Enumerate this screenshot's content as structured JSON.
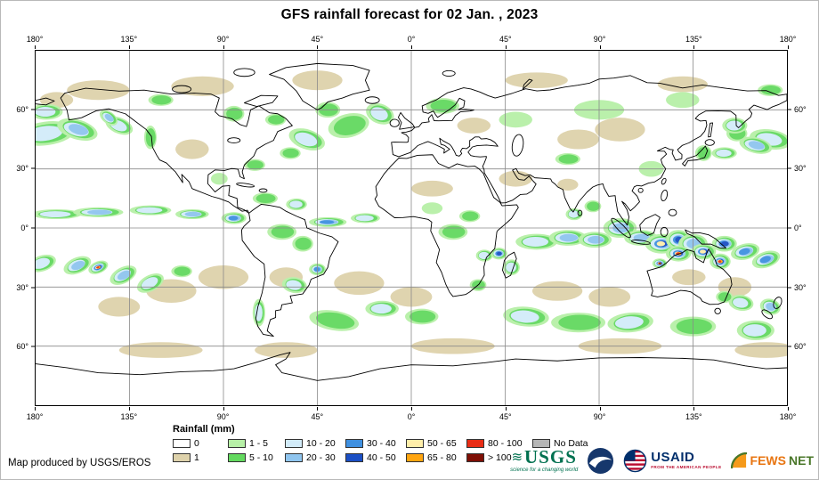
{
  "title": "GFS rainfall forecast for 02 Jan. , 2023",
  "attribution": "Map produced by USGS/EROS",
  "map": {
    "lon_labels": [
      "180°",
      "135°",
      "90°",
      "45°",
      "0°",
      "45°",
      "90°",
      "135°",
      "180°"
    ],
    "lat_labels": [
      "60°",
      "30°",
      "0°",
      "30°",
      "60°"
    ],
    "tan_patches": [
      [
        30,
        20,
        15,
        5,
        0
      ],
      [
        80,
        18,
        15,
        5,
        0
      ],
      [
        135,
        15,
        12,
        5,
        0
      ],
      [
        240,
        15,
        15,
        4,
        0
      ],
      [
        310,
        17,
        12,
        4,
        0
      ],
      [
        10,
        25,
        8,
        4,
        0
      ],
      [
        280,
        40,
        12,
        6,
        0
      ],
      [
        260,
        45,
        10,
        5,
        0
      ],
      [
        75,
        50,
        8,
        5,
        0
      ],
      [
        120,
        115,
        8,
        5,
        0
      ],
      [
        155,
        118,
        12,
        6,
        0
      ],
      [
        180,
        125,
        10,
        5,
        0
      ],
      [
        90,
        115,
        12,
        6,
        0
      ],
      [
        65,
        122,
        12,
        6,
        0
      ],
      [
        250,
        122,
        12,
        5,
        0
      ],
      [
        275,
        125,
        10,
        5,
        0
      ],
      [
        335,
        120,
        8,
        5,
        0
      ],
      [
        40,
        130,
        10,
        5,
        0
      ],
      [
        60,
        152,
        20,
        4,
        0
      ],
      [
        120,
        152,
        15,
        4,
        0
      ],
      [
        200,
        150,
        20,
        4,
        0
      ],
      [
        280,
        150,
        20,
        4,
        0
      ],
      [
        350,
        152,
        15,
        4,
        0
      ],
      [
        190,
        70,
        10,
        4,
        0
      ],
      [
        230,
        65,
        8,
        4,
        0
      ],
      [
        313,
        115,
        8,
        4,
        0
      ],
      [
        255,
        68,
        5,
        3,
        0
      ],
      [
        210,
        38,
        8,
        4,
        0
      ]
    ],
    "rain_systems": [
      [
        5,
        42,
        14,
        6,
        3,
        -8
      ],
      [
        352,
        45,
        10,
        5,
        3,
        10
      ],
      [
        345,
        48,
        8,
        4,
        4,
        15
      ],
      [
        20,
        40,
        10,
        5,
        4,
        18
      ],
      [
        40,
        38,
        7,
        4,
        3,
        25
      ],
      [
        35,
        34,
        5,
        3,
        4,
        40
      ],
      [
        5,
        31,
        8,
        4,
        3,
        0
      ],
      [
        330,
        52,
        6,
        3,
        3,
        0
      ],
      [
        336,
        42,
        5,
        4,
        2,
        0
      ],
      [
        55,
        44,
        3,
        6,
        2,
        0
      ],
      [
        130,
        45,
        9,
        5,
        3,
        20
      ],
      [
        150,
        38,
        10,
        6,
        2,
        -15
      ],
      [
        165,
        32,
        7,
        5,
        3,
        25
      ],
      [
        140,
        30,
        6,
        4,
        2,
        0
      ],
      [
        122,
        52,
        5,
        3,
        2,
        0
      ],
      [
        195,
        28,
        8,
        4,
        2,
        0
      ],
      [
        230,
        35,
        8,
        4,
        1,
        0
      ],
      [
        270,
        30,
        12,
        5,
        1,
        0
      ],
      [
        310,
        25,
        8,
        4,
        1,
        0
      ],
      [
        352,
        20,
        6,
        3,
        2,
        0
      ],
      [
        10,
        83,
        12,
        2.5,
        3,
        0
      ],
      [
        30,
        82,
        12,
        2.5,
        4,
        0
      ],
      [
        55,
        81,
        10,
        2.5,
        3,
        0
      ],
      [
        75,
        83,
        8,
        2.5,
        4,
        0
      ],
      [
        95,
        85,
        6,
        3,
        5,
        0
      ],
      [
        140,
        87,
        9,
        2.5,
        5,
        0
      ],
      [
        158,
        85,
        7,
        2.5,
        3,
        0
      ],
      [
        118,
        92,
        7,
        4,
        2,
        0
      ],
      [
        128,
        98,
        5,
        4,
        2,
        0
      ],
      [
        135,
        111,
        4,
        3,
        5,
        0
      ],
      [
        124,
        119,
        6,
        4,
        3,
        10
      ],
      [
        107,
        133,
        3,
        7,
        3,
        0
      ],
      [
        143,
        137,
        12,
        5,
        2,
        10
      ],
      [
        166,
        131,
        8,
        4,
        3,
        0
      ],
      [
        185,
        135,
        8,
        4,
        2,
        0
      ],
      [
        200,
        92,
        7,
        4,
        2,
        0
      ],
      [
        208,
        84,
        5,
        3,
        2,
        0
      ],
      [
        190,
        80,
        5,
        3,
        1,
        0
      ],
      [
        215,
        104,
        4,
        3,
        3,
        0
      ],
      [
        222,
        103,
        4,
        3,
        6,
        0
      ],
      [
        228,
        110,
        4,
        4,
        3,
        0
      ],
      [
        212,
        119,
        4,
        3,
        2,
        0
      ],
      [
        240,
        97,
        10,
        4,
        3,
        0
      ],
      [
        255,
        95,
        9,
        4,
        4,
        0
      ],
      [
        268,
        96,
        8,
        4,
        4,
        0
      ],
      [
        258,
        83,
        4,
        3,
        3,
        0
      ],
      [
        267,
        79,
        4,
        3,
        2,
        0
      ],
      [
        280,
        90,
        8,
        5,
        4,
        0
      ],
      [
        290,
        95,
        8,
        4,
        4,
        0
      ],
      [
        300,
        98,
        8,
        5,
        7,
        0
      ],
      [
        308,
        96,
        6,
        5,
        6,
        0
      ],
      [
        315,
        98,
        7,
        5,
        4,
        0
      ],
      [
        308,
        103,
        6,
        4,
        9,
        0
      ],
      [
        299,
        108,
        3.5,
        2.5,
        10,
        0
      ],
      [
        320,
        102,
        6,
        4,
        7,
        0
      ],
      [
        328,
        107,
        5,
        4,
        9,
        0
      ],
      [
        330,
        98,
        6,
        4,
        6,
        0
      ],
      [
        340,
        102,
        7,
        4,
        5,
        -15
      ],
      [
        350,
        106,
        7,
        4,
        5,
        -20
      ],
      [
        3,
        108,
        7,
        4,
        3,
        -20
      ],
      [
        20,
        109,
        7,
        4,
        4,
        -25
      ],
      [
        30,
        110,
        5,
        3,
        9,
        -25
      ],
      [
        42,
        114,
        7,
        4,
        4,
        -30
      ],
      [
        55,
        118,
        7,
        4,
        3,
        -30
      ],
      [
        70,
        112,
        5,
        3,
        2,
        0
      ],
      [
        235,
        135,
        11,
        5,
        3,
        5
      ],
      [
        260,
        138,
        13,
        5,
        2,
        0
      ],
      [
        285,
        138,
        11,
        5,
        3,
        -5
      ],
      [
        315,
        140,
        11,
        5,
        2,
        0
      ],
      [
        345,
        142,
        9,
        5,
        3,
        0
      ],
      [
        338,
        128,
        6,
        4,
        3,
        10
      ],
      [
        352,
        130,
        5,
        4,
        4,
        20
      ],
      [
        330,
        125,
        4,
        3,
        2,
        0
      ],
      [
        295,
        60,
        6,
        4,
        1,
        0
      ],
      [
        320,
        52,
        4,
        4,
        2,
        0
      ],
      [
        335,
        38,
        6,
        4,
        3,
        0
      ],
      [
        255,
        55,
        6,
        3,
        2,
        0
      ],
      [
        105,
        58,
        5,
        3,
        2,
        0
      ],
      [
        115,
        35,
        5,
        3,
        2,
        0
      ],
      [
        95,
        32,
        5,
        4,
        2,
        0
      ],
      [
        60,
        25,
        6,
        3,
        2,
        0
      ],
      [
        110,
        75,
        6,
        3,
        2,
        0
      ],
      [
        125,
        78,
        5,
        3,
        3,
        0
      ],
      [
        88,
        65,
        4,
        3,
        1,
        0
      ]
    ]
  },
  "legend": {
    "title": "Rainfall (mm)",
    "palette": {
      "0": "#ffffff",
      "1": "#ded2ab",
      "1-5": "#b7f0a7",
      "5-10": "#63d95f",
      "10-20": "#d2ebf9",
      "20-30": "#8fc5ef",
      "30-40": "#3f90e0",
      "40-50": "#1b4fc4",
      "50-65": "#ffeeaa",
      "65-80": "#ffa510",
      "80-100": "#e92c15",
      "gt100": "#7e0f05",
      "no_data": "#b5b5b5"
    },
    "rows": [
      [
        {
          "label": "0",
          "key": "0"
        },
        {
          "label": "1 - 5",
          "key": "1-5"
        },
        {
          "label": "10 - 20",
          "key": "10-20"
        },
        {
          "label": "30 - 40",
          "key": "30-40"
        },
        {
          "label": "50 - 65",
          "key": "50-65"
        },
        {
          "label": "80 - 100",
          "key": "80-100"
        },
        {
          "label": "No Data",
          "key": "no_data"
        }
      ],
      [
        {
          "label": "1",
          "key": "1"
        },
        {
          "label": "5 - 10",
          "key": "5-10"
        },
        {
          "label": "20 - 30",
          "key": "20-30"
        },
        {
          "label": "40 - 50",
          "key": "40-50"
        },
        {
          "label": "65 - 80",
          "key": "65-80"
        },
        {
          "label": "> 100",
          "key": "gt100"
        }
      ]
    ]
  },
  "logos": {
    "usgs": {
      "mark": "≋",
      "text": "USGS",
      "tagline": "science for a changing world"
    },
    "usaid": {
      "text": "USAID",
      "tagline": "FROM THE AMERICAN PEOPLE"
    },
    "fews": {
      "text1": "FEWS",
      "text2": "NET"
    }
  }
}
